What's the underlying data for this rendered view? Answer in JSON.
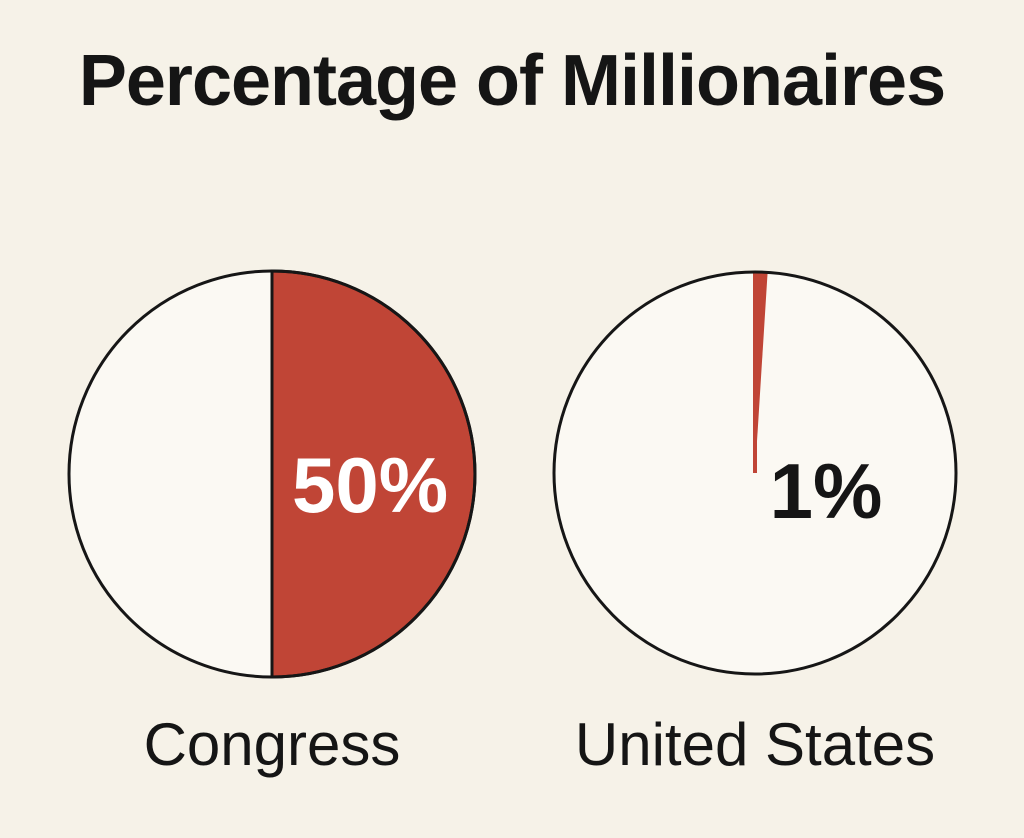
{
  "chart_data": {
    "type": "pie",
    "title": "Percentage of Millionaires",
    "categories": [
      "Congress",
      "United States"
    ],
    "values": [
      50,
      1
    ],
    "value_labels": [
      "50%",
      "1%"
    ],
    "unit": "%",
    "colors": {
      "filled": "#c04536",
      "empty": "#fbf9f3",
      "outline": "#161616",
      "background": "#f6f2e8",
      "text_on_filled": "#ffffff",
      "text_on_empty": "#151515"
    }
  }
}
